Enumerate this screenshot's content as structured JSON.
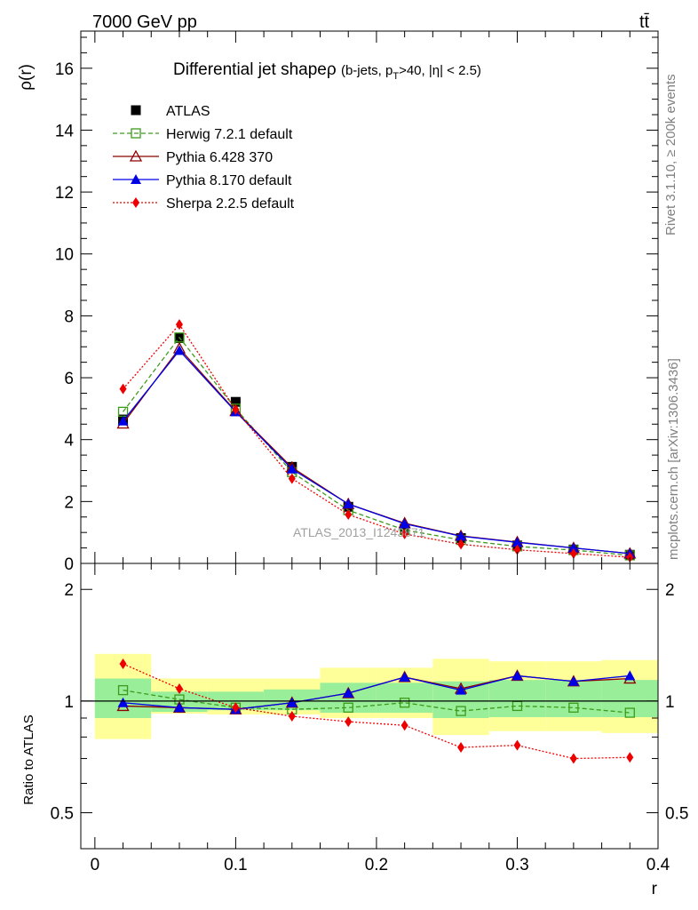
{
  "header": {
    "energy_label": "7000 GeV pp",
    "process_label": "tt̄",
    "plot_title": "Differential jet shapeρ",
    "plot_title_sub": "(b-jets, p",
    "plot_title_sub_T": "T",
    "plot_title_sub_tail": ">40, |η| < 2.5)",
    "watermark": "ATLAS_2013_I1243871"
  },
  "side_text": {
    "rivet": "Rivet 3.1.10, ≥ 200k events",
    "mcplots": "mcplots.cern.ch [arXiv:1306.3436]"
  },
  "colors": {
    "atlas": "#000000",
    "herwig": "#3d9b1b",
    "pythia6": "#8b0000",
    "pythia8": "#0000e6",
    "sherpa": "#ee0000",
    "band_inner": "#99ee99",
    "band_outer": "#ffff99"
  },
  "chart_data": [
    {
      "type": "line",
      "ylabel": "ρ(r)",
      "xlim": [
        -0.01,
        0.4
      ],
      "ylim": [
        0,
        17.2
      ],
      "yticks": [
        0,
        2,
        4,
        6,
        8,
        10,
        12,
        14,
        16
      ],
      "x": [
        0.02,
        0.06,
        0.1,
        0.14,
        0.18,
        0.22,
        0.26,
        0.3,
        0.34,
        0.38
      ],
      "legend_position": "top-left",
      "series": [
        {
          "key": "atlas",
          "name": "ATLAS",
          "values": [
            4.65,
            7.28,
            5.22,
            3.12,
            1.83,
            1.12,
            0.82,
            0.58,
            0.45,
            0.28
          ]
        },
        {
          "key": "herwig",
          "name": "Herwig 7.2.1 default",
          "values": [
            4.9,
            7.3,
            5.0,
            2.95,
            1.72,
            1.08,
            0.76,
            0.55,
            0.43,
            0.26
          ]
        },
        {
          "key": "pythia6",
          "name": "Pythia 6.428 370",
          "values": [
            4.52,
            6.95,
            4.92,
            3.1,
            1.92,
            1.3,
            0.89,
            0.69,
            0.5,
            0.32
          ]
        },
        {
          "key": "pythia8",
          "name": "Pythia 8.170 default",
          "values": [
            4.6,
            6.88,
            4.9,
            3.05,
            1.92,
            1.28,
            0.88,
            0.68,
            0.5,
            0.32
          ]
        },
        {
          "key": "sherpa",
          "name": "Sherpa 2.2.5 default",
          "values": [
            5.64,
            7.72,
            4.97,
            2.74,
            1.58,
            0.95,
            0.62,
            0.44,
            0.32,
            0.2
          ]
        }
      ]
    },
    {
      "type": "line",
      "xlabel": "r",
      "ylabel": "Ratio to ATLAS",
      "xlim": [
        -0.01,
        0.4
      ],
      "ylim": [
        0.4,
        2.35
      ],
      "yticks": [
        0.5,
        1,
        2
      ],
      "xticks": [
        0,
        0.1,
        0.2,
        0.3,
        0.4
      ],
      "bins": [
        [
          0.0,
          0.04
        ],
        [
          0.04,
          0.08
        ],
        [
          0.08,
          0.12
        ],
        [
          0.12,
          0.16
        ],
        [
          0.16,
          0.2
        ],
        [
          0.2,
          0.24
        ],
        [
          0.24,
          0.28
        ],
        [
          0.28,
          0.32
        ],
        [
          0.32,
          0.36
        ],
        [
          0.36,
          0.4
        ]
      ],
      "band_inner": [
        [
          0.9,
          1.15
        ],
        [
          0.935,
          1.06
        ],
        [
          0.945,
          1.06
        ],
        [
          0.945,
          1.075
        ],
        [
          0.93,
          1.12
        ],
        [
          0.93,
          1.12
        ],
        [
          0.9,
          1.13
        ],
        [
          0.905,
          1.14
        ],
        [
          0.905,
          1.14
        ],
        [
          0.905,
          1.14
        ]
      ],
      "band_outer": [
        [
          0.79,
          1.34
        ],
        [
          0.925,
          1.15
        ],
        [
          0.92,
          1.15
        ],
        [
          0.92,
          1.15
        ],
        [
          0.9,
          1.23
        ],
        [
          0.9,
          1.23
        ],
        [
          0.81,
          1.3
        ],
        [
          0.83,
          1.28
        ],
        [
          0.83,
          1.28
        ],
        [
          0.82,
          1.29
        ]
      ],
      "x": [
        0.02,
        0.06,
        0.1,
        0.14,
        0.18,
        0.22,
        0.26,
        0.3,
        0.34,
        0.38
      ],
      "series": [
        {
          "key": "herwig",
          "name": "Herwig 7.2.1 default",
          "values": [
            1.07,
            1.01,
            0.96,
            0.95,
            0.96,
            0.99,
            0.94,
            0.97,
            0.96,
            0.93
          ]
        },
        {
          "key": "pythia6",
          "name": "Pythia 6.428 370",
          "values": [
            0.97,
            0.96,
            0.95,
            0.99,
            1.05,
            1.16,
            1.08,
            1.17,
            1.13,
            1.15
          ]
        },
        {
          "key": "pythia8",
          "name": "Pythia 8.170 default",
          "values": [
            0.99,
            0.96,
            0.95,
            0.99,
            1.05,
            1.16,
            1.07,
            1.17,
            1.13,
            1.17
          ]
        },
        {
          "key": "sherpa",
          "name": "Sherpa 2.2.5 default",
          "values": [
            1.26,
            1.08,
            0.96,
            0.91,
            0.88,
            0.86,
            0.75,
            0.76,
            0.7,
            0.705
          ]
        }
      ]
    }
  ]
}
